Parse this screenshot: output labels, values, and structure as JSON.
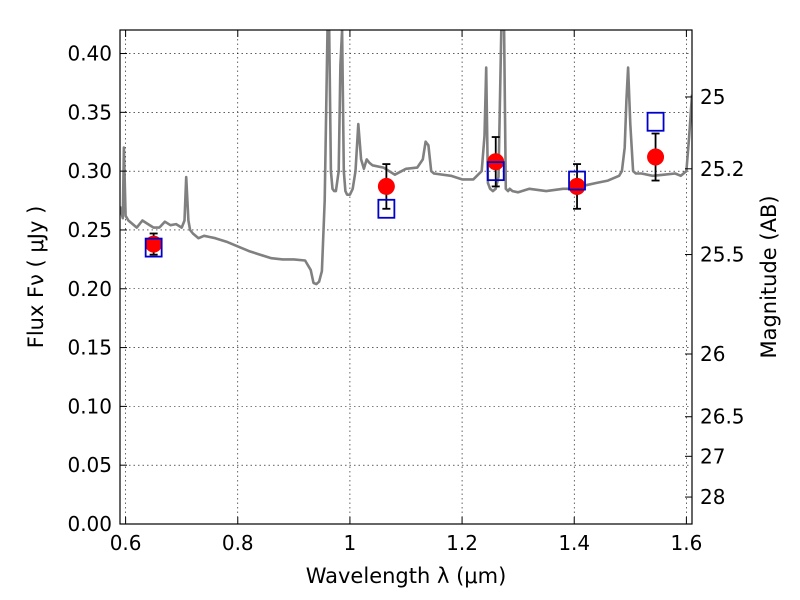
{
  "chart_data": {
    "type": "scatter",
    "title": "",
    "xlabel": "Wavelength  λ (μm)",
    "ylabel": "Flux  Fν  ( μJy )",
    "ylabel_right": "Magnitude (AB)",
    "xlim": [
      0.59,
      1.61
    ],
    "ylim": [
      0.0,
      0.42
    ],
    "grid": true,
    "x_ticks": [
      0.6,
      0.8,
      1.0,
      1.2,
      1.4,
      1.6
    ],
    "x_tick_labels": [
      "0.6",
      "0.8",
      "1",
      "1.2",
      "1.4",
      "1.6"
    ],
    "y_ticks": [
      0.0,
      0.05,
      0.1,
      0.15,
      0.2,
      0.25,
      0.3,
      0.35,
      0.4
    ],
    "y_tick_labels": [
      "0.00",
      "0.05",
      "0.10",
      "0.15",
      "0.20",
      "0.25",
      "0.30",
      "0.35",
      "0.40"
    ],
    "right_ticks": [
      25,
      25.2,
      25.5,
      26,
      26.5,
      27,
      28
    ],
    "right_tick_labels": [
      "25",
      "25.2",
      "25.5",
      "26",
      "26.5",
      "27",
      "28"
    ],
    "series": [
      {
        "kind": "model_spectrum",
        "color": "#808080",
        "x": [
          0.59,
          0.595,
          0.597,
          0.6,
          0.605,
          0.61,
          0.62,
          0.63,
          0.64,
          0.65,
          0.66,
          0.67,
          0.68,
          0.69,
          0.7,
          0.705,
          0.708,
          0.712,
          0.715,
          0.72,
          0.73,
          0.74,
          0.75,
          0.76,
          0.78,
          0.8,
          0.82,
          0.84,
          0.86,
          0.88,
          0.9,
          0.92,
          0.93,
          0.935,
          0.94,
          0.945,
          0.95,
          0.955,
          0.96,
          0.963,
          0.966,
          0.969,
          0.972,
          0.975,
          0.98,
          0.983,
          0.986,
          0.989,
          0.992,
          0.995,
          1.0,
          1.005,
          1.01,
          1.015,
          1.02,
          1.025,
          1.03,
          1.035,
          1.04,
          1.06,
          1.08,
          1.1,
          1.12,
          1.13,
          1.135,
          1.14,
          1.145,
          1.15,
          1.18,
          1.2,
          1.22,
          1.235,
          1.24,
          1.243,
          1.246,
          1.25,
          1.255,
          1.26,
          1.265,
          1.27,
          1.272,
          1.275,
          1.278,
          1.282,
          1.285,
          1.29,
          1.3,
          1.32,
          1.35,
          1.38,
          1.4,
          1.42,
          1.44,
          1.46,
          1.48,
          1.485,
          1.49,
          1.493,
          1.496,
          1.5,
          1.505,
          1.51,
          1.52,
          1.54,
          1.56,
          1.58,
          1.59,
          1.6,
          1.605,
          1.61
        ],
        "y": [
          0.27,
          0.26,
          0.32,
          0.262,
          0.258,
          0.256,
          0.252,
          0.258,
          0.255,
          0.252,
          0.252,
          0.257,
          0.254,
          0.255,
          0.252,
          0.258,
          0.295,
          0.258,
          0.25,
          0.247,
          0.243,
          0.245,
          0.244,
          0.243,
          0.24,
          0.236,
          0.232,
          0.229,
          0.226,
          0.225,
          0.225,
          0.224,
          0.216,
          0.205,
          0.204,
          0.206,
          0.215,
          0.275,
          0.42,
          0.42,
          0.3,
          0.285,
          0.283,
          0.283,
          0.3,
          0.39,
          0.42,
          0.3,
          0.283,
          0.28,
          0.28,
          0.285,
          0.3,
          0.34,
          0.31,
          0.302,
          0.31,
          0.307,
          0.305,
          0.303,
          0.297,
          0.302,
          0.303,
          0.31,
          0.325,
          0.322,
          0.3,
          0.298,
          0.296,
          0.293,
          0.293,
          0.3,
          0.33,
          0.388,
          0.29,
          0.285,
          0.283,
          0.285,
          0.295,
          0.42,
          0.42,
          0.42,
          0.285,
          0.283,
          0.285,
          0.283,
          0.282,
          0.285,
          0.283,
          0.285,
          0.285,
          0.288,
          0.29,
          0.292,
          0.296,
          0.3,
          0.32,
          0.36,
          0.388,
          0.34,
          0.3,
          0.298,
          0.298,
          0.296,
          0.297,
          0.298,
          0.296,
          0.3,
          0.33,
          0.365
        ]
      },
      {
        "kind": "observed",
        "color": "#ff0000",
        "error_color": "#000000",
        "x": [
          0.65,
          1.065,
          1.26,
          1.405,
          1.545
        ],
        "y": [
          0.238,
          0.287,
          0.308,
          0.287,
          0.312
        ],
        "yerr": [
          0.009,
          0.019,
          0.021,
          0.019,
          0.02
        ]
      },
      {
        "kind": "model_bands",
        "color": "#0000cc",
        "x": [
          0.65,
          1.065,
          1.26,
          1.405,
          1.545
        ],
        "y": [
          0.235,
          0.268,
          0.3,
          0.292,
          0.342
        ]
      }
    ]
  }
}
